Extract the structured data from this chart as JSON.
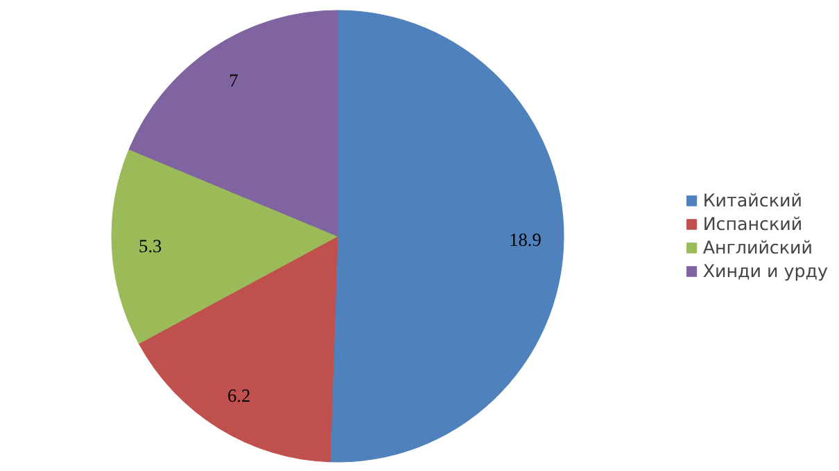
{
  "chart_data": {
    "type": "pie",
    "categories": [
      "Китайский",
      "Испанский",
      "Английский",
      "Хинди и урду"
    ],
    "values": [
      18.9,
      6.2,
      5.3,
      7
    ],
    "colors": [
      "#4f81bd",
      "#c0504d",
      "#9bbb59",
      "#8064a2"
    ],
    "data_labels": true,
    "legend": "right"
  }
}
